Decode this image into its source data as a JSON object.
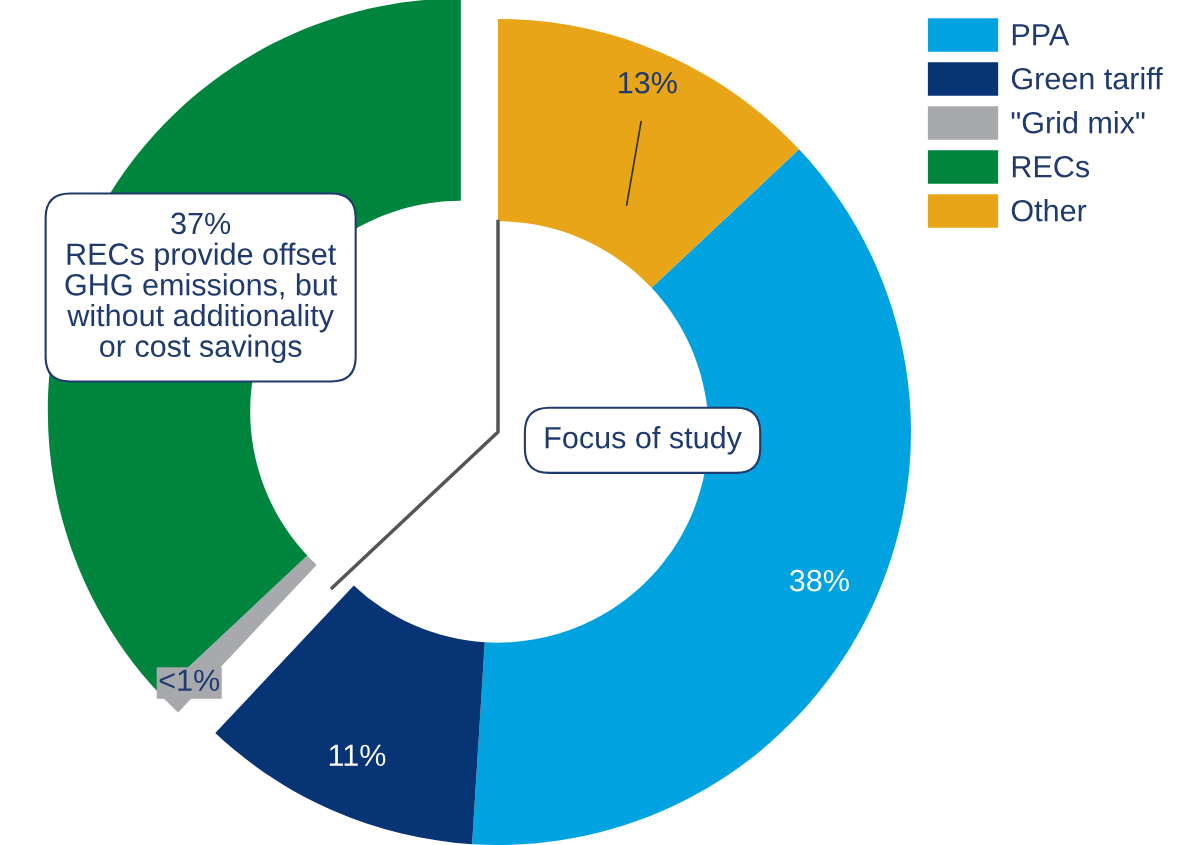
{
  "chart_data": {
    "type": "donut",
    "categories": [
      "PPA",
      "Green tariff",
      "\"Grid mix\"",
      "RECs",
      "Other"
    ],
    "values": [
      38,
      11,
      1,
      37,
      13
    ],
    "colors": [
      "#00a3e0",
      "#063475",
      "#a7a9ac",
      "#00853f",
      "#e8a517"
    ],
    "value_labels": [
      "38%",
      "11%",
      "<1%",
      null,
      "13%"
    ],
    "annotations": [
      "37%\nRECs provide offset\nGHG emissions, but\nwithout additionality\nor cost savings",
      "Focus of study"
    ],
    "legend": "top right"
  }
}
